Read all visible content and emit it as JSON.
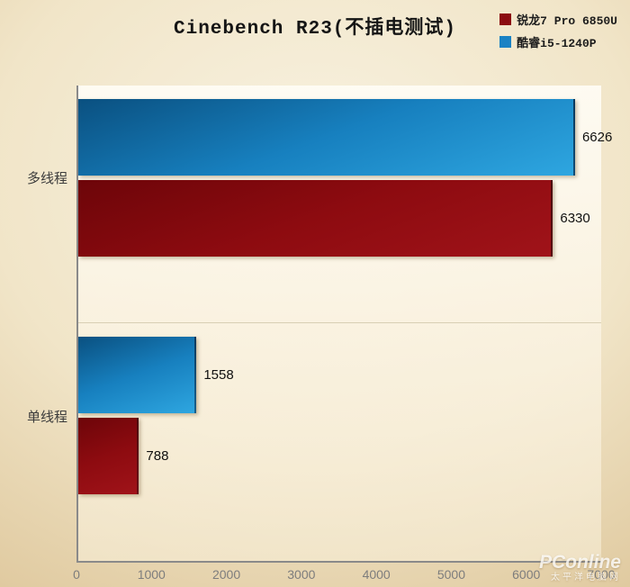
{
  "title": "Cinebench R23(不插电测试)",
  "legend": {
    "items": [
      {
        "label": "锐龙7 Pro 6850U",
        "color": "#8b0c11",
        "series_key": "ryzen7-pro-6850u"
      },
      {
        "label": "酷睿i5-1240P",
        "color": "#1a82c4",
        "series_key": "core-i5-1240p"
      }
    ]
  },
  "watermark": {
    "brand": "PConline",
    "subtitle": "太平洋电脑网"
  },
  "chart_data": {
    "type": "bar",
    "orientation": "horizontal",
    "title": "Cinebench R23(不插电测试)",
    "categories": [
      "多线程",
      "单线程"
    ],
    "series": [
      {
        "name": "酷睿i5-1240P",
        "key": "core-i5-1240p",
        "values": [
          6626,
          1558
        ],
        "gradient": [
          "#0a5080",
          "#1780bf",
          "#2ea6e0"
        ]
      },
      {
        "name": "锐龙7 Pro 6850U",
        "key": "ryzen7-pro-6850u",
        "values": [
          6330,
          788
        ],
        "gradient": [
          "#6d0509",
          "#8d0b10",
          "#a01319"
        ]
      }
    ],
    "xlim": [
      0,
      7000
    ],
    "xticks": [
      "0",
      "1000",
      "2000",
      "3000",
      "4000",
      "5000",
      "6000",
      "7000"
    ],
    "legend_position": "top-right",
    "grid": false,
    "value_labels": true
  }
}
